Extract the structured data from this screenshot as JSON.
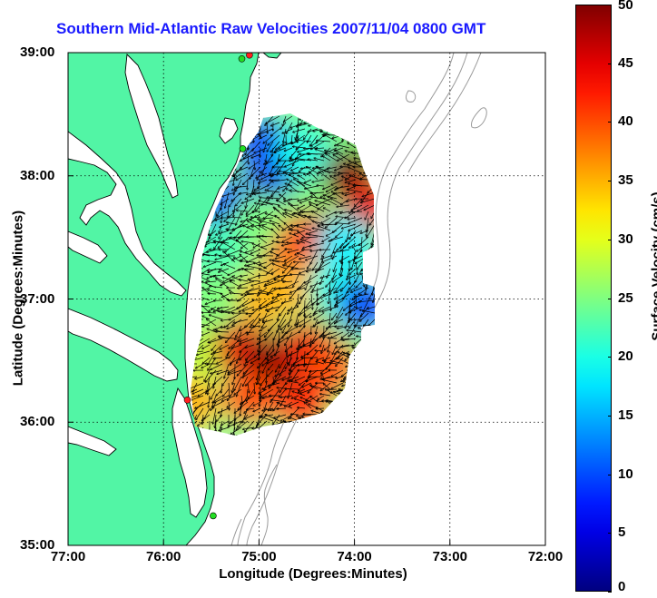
{
  "title": "Southern Mid-Atlantic Raw Velocities 2007/11/04 0800 GMT",
  "xlabel": "Longitude (Degrees:Minutes)",
  "ylabel": "Latitude (Degrees:Minutes)",
  "colorbar_label": "Surface Velocity (cm/s)",
  "colors": {
    "land": "#52f5a5",
    "water": "#ffffff",
    "coastline": "#000000",
    "bathymetry": "#9a9a9a",
    "title": "#1a1aff",
    "site_green": "#22dd22",
    "site_red": "#ff2020"
  },
  "x_ticks": [
    "77:00",
    "76:00",
    "75:00",
    "74:00",
    "73:00",
    "72:00"
  ],
  "y_ticks": [
    "39:00",
    "38:00",
    "37:00",
    "36:00",
    "35:00"
  ],
  "colorbar_ticks": [
    "50",
    "45",
    "40",
    "35",
    "30",
    "25",
    "20",
    "15",
    "10",
    "5",
    "0"
  ],
  "chart_data": {
    "type": "heatmap",
    "title": "Southern Mid-Atlantic Raw Velocities 2007/11/04 0800 GMT",
    "xlabel": "Longitude (Degrees:Minutes)",
    "ylabel": "Latitude (Degrees:Minutes)",
    "xlim": [
      -77.0,
      -72.0
    ],
    "ylim": [
      35.0,
      39.0
    ],
    "grid": true,
    "colorbar": {
      "label": "Surface Velocity (cm/s)",
      "range": [
        0,
        50
      ]
    },
    "speed_regions": [
      {
        "lon": -74.85,
        "lat": 38.05,
        "speed": 5
      },
      {
        "lon": -74.95,
        "lat": 38.25,
        "speed": 8
      },
      {
        "lon": -75.35,
        "lat": 37.75,
        "speed": 8
      },
      {
        "lon": -74.55,
        "lat": 38.2,
        "speed": 20
      },
      {
        "lon": -74.05,
        "lat": 38.0,
        "speed": 50
      },
      {
        "lon": -73.85,
        "lat": 37.75,
        "speed": 45
      },
      {
        "lon": -74.4,
        "lat": 37.5,
        "speed": 45
      },
      {
        "lon": -74.75,
        "lat": 37.45,
        "speed": 40
      },
      {
        "lon": -75.05,
        "lat": 37.6,
        "speed": 25
      },
      {
        "lon": -75.45,
        "lat": 37.4,
        "speed": 22
      },
      {
        "lon": -75.55,
        "lat": 37.0,
        "speed": 25
      },
      {
        "lon": -75.25,
        "lat": 37.05,
        "speed": 25
      },
      {
        "lon": -74.95,
        "lat": 37.0,
        "speed": 35
      },
      {
        "lon": -74.5,
        "lat": 37.1,
        "speed": 35
      },
      {
        "lon": -74.2,
        "lat": 37.1,
        "speed": 20
      },
      {
        "lon": -73.9,
        "lat": 36.95,
        "speed": 10
      },
      {
        "lon": -74.1,
        "lat": 37.45,
        "speed": 18
      },
      {
        "lon": -75.6,
        "lat": 36.55,
        "speed": 28
      },
      {
        "lon": -75.2,
        "lat": 36.6,
        "speed": 45
      },
      {
        "lon": -74.85,
        "lat": 36.5,
        "speed": 50
      },
      {
        "lon": -74.5,
        "lat": 36.6,
        "speed": 45
      },
      {
        "lon": -74.25,
        "lat": 36.45,
        "speed": 40
      },
      {
        "lon": -75.7,
        "lat": 36.15,
        "speed": 35
      },
      {
        "lon": -75.1,
        "lat": 36.2,
        "speed": 40
      },
      {
        "lon": -74.55,
        "lat": 36.15,
        "speed": 42
      }
    ],
    "sites": [
      {
        "lon": -75.1,
        "lat": 38.98,
        "color": "red"
      },
      {
        "lon": -75.18,
        "lat": 38.95,
        "color": "green"
      },
      {
        "lon": -75.17,
        "lat": 38.22,
        "color": "green"
      },
      {
        "lon": -75.75,
        "lat": 36.18,
        "color": "red"
      },
      {
        "lon": -75.48,
        "lat": 35.24,
        "color": "green"
      }
    ]
  }
}
